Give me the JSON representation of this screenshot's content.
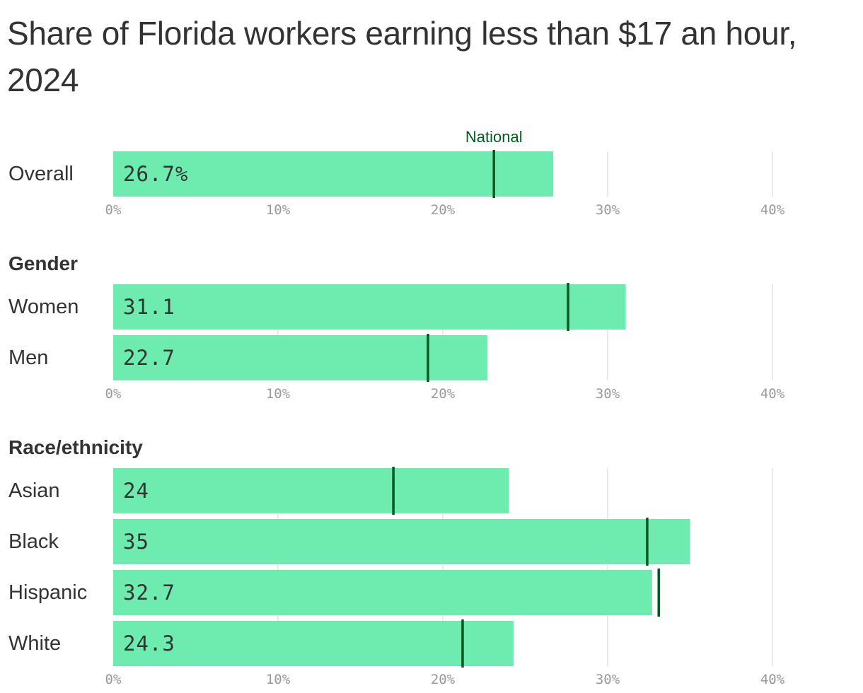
{
  "title": "Share of Florida workers earning less than $17 an hour, 2024",
  "colors": {
    "bar": "#6eecaf",
    "national_marker": "#005a1f",
    "grid": "#e3e3e3",
    "text": "#333333",
    "tick_text": "#999999"
  },
  "chart_data": {
    "type": "bar",
    "orientation": "horizontal",
    "title": "Share of Florida workers earning less than $17 an hour, 2024",
    "marker_label": "National",
    "xlim": [
      0,
      40
    ],
    "ticks": [
      "0%",
      "10%",
      "20%",
      "30%",
      "40%"
    ],
    "grid": true,
    "panels": [
      {
        "label": "",
        "rows": [
          {
            "category": "Overall",
            "value": 26.7,
            "value_label": "26.7%",
            "national": 23.1
          }
        ]
      },
      {
        "label": "Gender",
        "rows": [
          {
            "category": "Women",
            "value": 31.1,
            "value_label": "31.1",
            "national": 27.6
          },
          {
            "category": "Men",
            "value": 22.7,
            "value_label": "22.7",
            "national": 19.1
          }
        ]
      },
      {
        "label": "Race/ethnicity",
        "rows": [
          {
            "category": "Asian",
            "value": 24,
            "value_label": "24",
            "national": 17.0
          },
          {
            "category": "Black",
            "value": 35,
            "value_label": "35",
            "national": 32.4
          },
          {
            "category": "Hispanic",
            "value": 32.7,
            "value_label": "32.7",
            "national": 33.1
          },
          {
            "category": "White",
            "value": 24.3,
            "value_label": "24.3",
            "national": 21.2
          }
        ]
      }
    ]
  }
}
